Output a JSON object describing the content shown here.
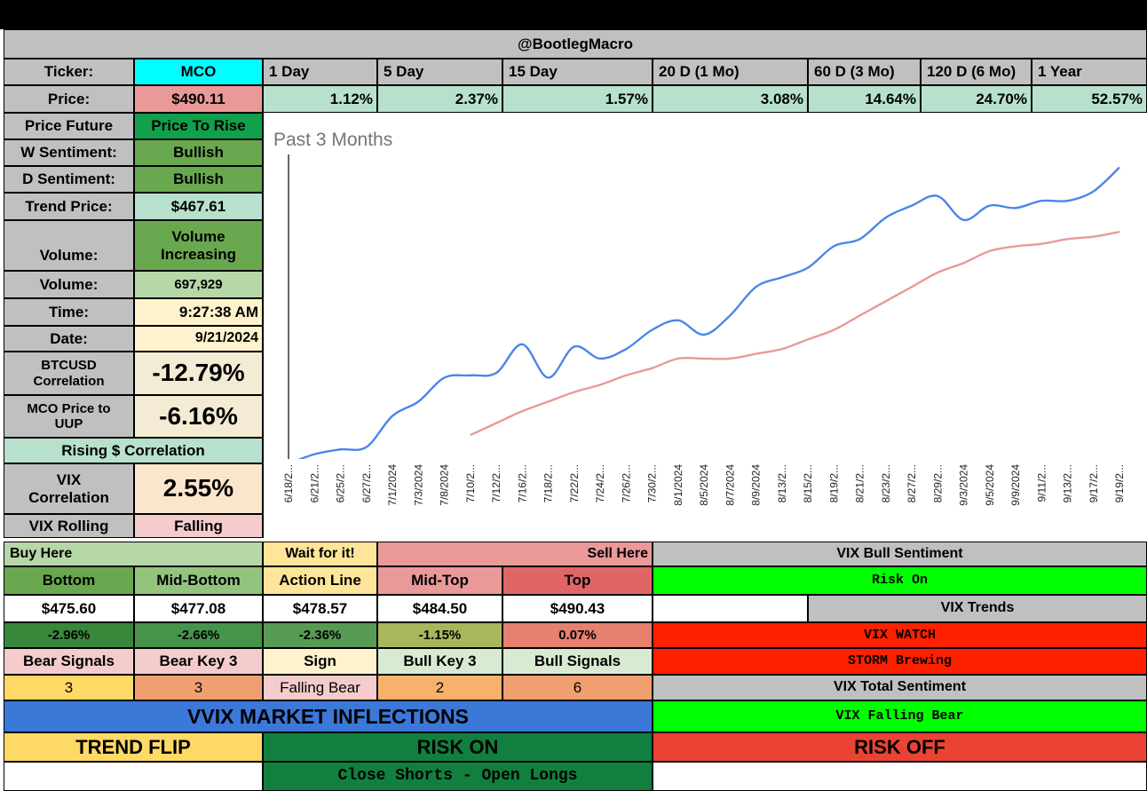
{
  "header": {
    "title": "@BootlegMacro"
  },
  "ticker": {
    "label": "Ticker:",
    "value": "MCO"
  },
  "periods": [
    {
      "label": "1 Day",
      "value": "1.12%"
    },
    {
      "label": "5 Day",
      "value": "2.37%"
    },
    {
      "label": "15 Day",
      "value": "1.57%"
    },
    {
      "label": "20 D (1 Mo)",
      "value": "3.08%"
    },
    {
      "label": "60 D (3 Mo)",
      "value": "14.64%"
    },
    {
      "label": "120 D (6 Mo)",
      "value": "24.70%"
    },
    {
      "label": "1 Year",
      "value": "52.57%"
    }
  ],
  "price": {
    "label": "Price:",
    "value": "$490.11"
  },
  "stats": {
    "price_future": {
      "label": "Price Future",
      "value": "Price To Rise"
    },
    "w_sentiment": {
      "label": "W Sentiment:",
      "value": "Bullish"
    },
    "d_sentiment": {
      "label": "D Sentiment:",
      "value": "Bullish"
    },
    "trend_price": {
      "label": "Trend Price:",
      "value": "$467.61"
    },
    "volume_trend": {
      "label": "Volume:",
      "value_line1": "Volume",
      "value_line2": "Increasing"
    },
    "volume": {
      "label": "Volume:",
      "value": "697,929"
    },
    "time": {
      "label": "Time:",
      "value": "9:27:38 AM"
    },
    "date": {
      "label": "Date:",
      "value": "9/21/2024"
    },
    "btc_corr": {
      "label_line1": "BTCUSD",
      "label_line2": "Correlation",
      "value": "-12.79%"
    },
    "uup_corr": {
      "label_line1": "MCO Price to",
      "label_line2": "UUP",
      "value": "-6.16%"
    },
    "rising_corr": "Rising $ Correlation",
    "vix_corr": {
      "label_line1": "VIX",
      "label_line2": "Correlation",
      "value": "2.55%"
    },
    "vix_rolling": {
      "label": "VIX Rolling",
      "value": "Falling"
    }
  },
  "chart_data": {
    "type": "line",
    "title": "Past 3 Months",
    "x": [
      "6/18/2...",
      "6/21/2...",
      "6/25/2...",
      "6/27/2...",
      "7/1/2024",
      "7/3/2024",
      "7/8/2024",
      "7/10/2...",
      "7/12/2...",
      "7/16/2...",
      "7/18/2...",
      "7/22/2...",
      "7/24/2...",
      "7/26/2...",
      "7/30/2...",
      "8/1/2024",
      "8/5/2024",
      "8/7/2024",
      "8/9/2024",
      "8/13/2...",
      "8/15/2...",
      "8/19/2...",
      "8/21/2...",
      "8/23/2...",
      "8/27/2...",
      "8/29/2...",
      "9/3/2024",
      "9/5/2024",
      "9/9/2024",
      "9/11/2...",
      "9/13/2...",
      "9/17/2...",
      "9/19/2..."
    ],
    "series": [
      {
        "color": "#4a86e8",
        "values": [
          394,
          396,
          397,
          397.5,
          404,
          407,
          412,
          412.5,
          413,
          419,
          412,
          418.5,
          416,
          418,
          422,
          424,
          421,
          425,
          431,
          433,
          435,
          439.5,
          441,
          445.5,
          448,
          450,
          445,
          448,
          447.5,
          449,
          449,
          451,
          456
        ]
      },
      {
        "color": "#ea9999",
        "values": [
          null,
          null,
          null,
          null,
          null,
          null,
          null,
          400,
          402.5,
          405,
          407,
          409,
          410.5,
          412.5,
          414,
          416,
          416,
          416,
          417,
          418,
          420,
          422,
          425,
          428,
          431,
          434,
          436,
          438.5,
          439.5,
          440,
          441,
          441.5,
          442.5
        ]
      }
    ],
    "ylim": [
      395,
      460
    ]
  },
  "levels": {
    "buy_here": "Buy Here",
    "wait": "Wait for it!",
    "sell_here": "Sell Here",
    "headers": [
      "Bottom",
      "Mid-Bottom",
      "Action Line",
      "Mid-Top",
      "Top"
    ],
    "prices": [
      "$475.60",
      "$477.08",
      "$478.57",
      "$484.50",
      "$490.43"
    ],
    "pcts": [
      "-2.96%",
      "-2.66%",
      "-2.36%",
      "-1.15%",
      "0.07%"
    ],
    "signal_headers": [
      "Bear Signals",
      "Bear Key 3",
      "Sign",
      "Bull Key 3",
      "Bull Signals"
    ],
    "signal_values": [
      "3",
      "3",
      "Falling Bear",
      "2",
      "6"
    ]
  },
  "vix": {
    "bull_sentiment_label": "VIX Bull Sentiment",
    "bull_sentiment_value": "Risk On",
    "trends_label": "VIX Trends",
    "watch": "VIX WATCH",
    "storm": "STORM Brewing",
    "total_label": "VIX Total Sentiment",
    "total_value": "VIX Falling Bear"
  },
  "vvix": {
    "title": "VVIX MARKET INFLECTIONS",
    "trend_flip": "TREND FLIP",
    "risk_on": "RISK ON",
    "risk_off": "RISK OFF",
    "action": "Close Shorts - Open Longs"
  },
  "colors": {
    "cyan": "#00ffff",
    "gray": "#c0c0c0",
    "mint": "#b7e1cd",
    "green": "#6aa84f",
    "bright_green": "#00ff00",
    "red": "#ff2000",
    "blue": "#3c78d8",
    "yellow": "#ffd966"
  }
}
